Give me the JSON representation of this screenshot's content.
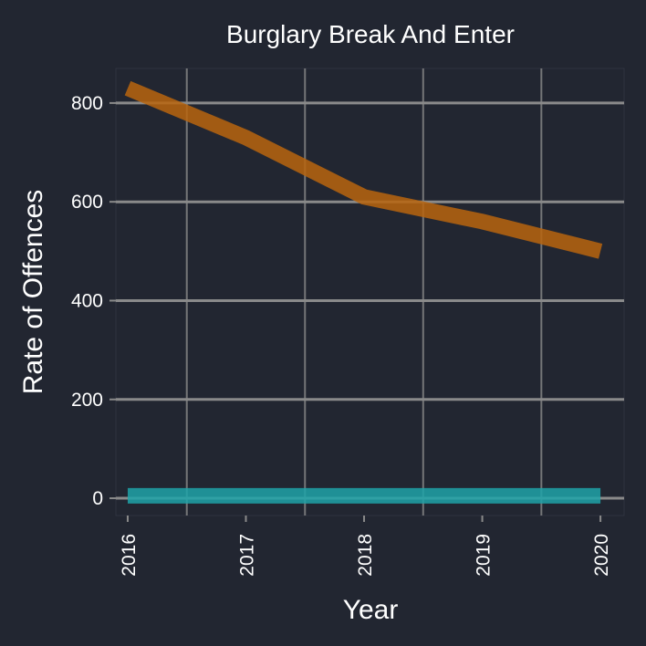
{
  "chart_data": {
    "type": "line",
    "title": "Burglary Break And Enter",
    "xlabel": "Year",
    "ylabel": "Rate of Offences",
    "x": [
      2016,
      2017,
      2018,
      2019,
      2020
    ],
    "xlim": [
      2015.9,
      2020.2
    ],
    "ylim": [
      -35,
      870
    ],
    "yticks": [
      0,
      200,
      400,
      600,
      800
    ],
    "grid": true,
    "series": [
      {
        "values": [
          830,
          730,
          610,
          560,
          500
        ],
        "color": "#b8650e"
      },
      {
        "values": [
          5,
          5,
          5,
          5,
          5
        ],
        "color": "#1fa3a8"
      }
    ]
  }
}
